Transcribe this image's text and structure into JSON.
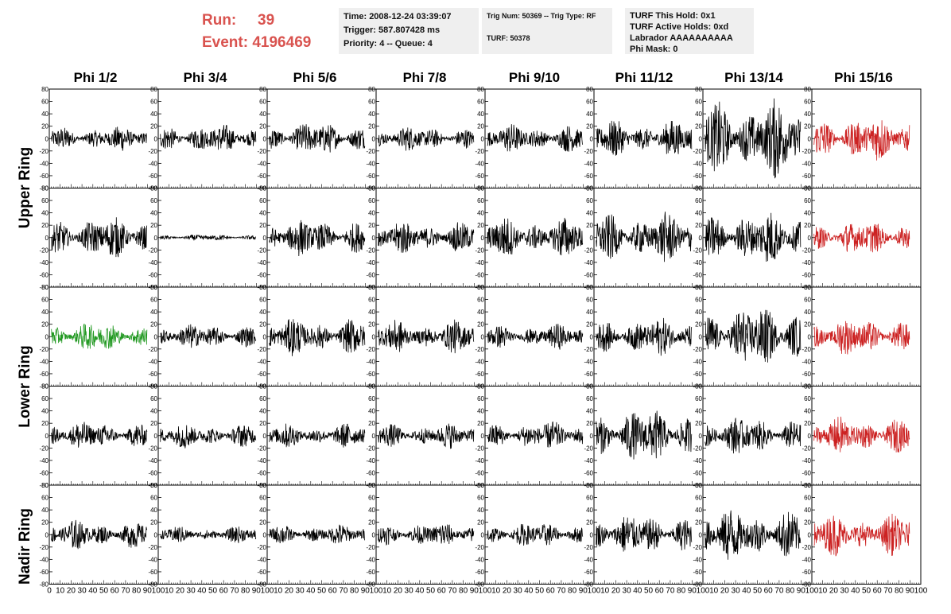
{
  "header": {
    "run_label": "Run:",
    "run_value": "39",
    "event_label": "Event:",
    "event_value": "4196469",
    "time": "Time: 2008-12-24 03:39:07",
    "trigger": "Trigger: 587.807428 ms",
    "priority": "Priority: 4 -- Queue: 4",
    "trig_num": "Trig Num: 50369 -- Trig Type: RF",
    "turf": "TURF: 50378",
    "turf_this_hold": "TURF This Hold: 0x1",
    "turf_active_holds": "TURF Active Holds: 0xd",
    "labrador": "Labrador AAAAAAAAAA",
    "phi_mask": "Phi Mask: 0"
  },
  "columns": [
    "Phi 1/2",
    "Phi 3/4",
    "Phi 5/6",
    "Phi 7/8",
    "Phi 9/10",
    "Phi 11/12",
    "Phi 13/14",
    "Phi 15/16"
  ],
  "ring_labels": [
    "Upper Ring",
    "Lower Ring",
    "Nadir Ring"
  ],
  "colors": {
    "normal": "#000000",
    "red": "#cc2222",
    "green": "#229922",
    "run_text": "#d9534f"
  },
  "chart_data": {
    "type": "line",
    "title": "",
    "xlabel": "",
    "ylabel": "",
    "xlim": [
      0,
      100
    ],
    "ylim": [
      -80,
      80
    ],
    "x_ticks": [
      0,
      10,
      20,
      30,
      40,
      50,
      60,
      70,
      80,
      90,
      100
    ],
    "y_ticks": [
      -80,
      -60,
      -40,
      -20,
      0,
      20,
      40,
      60,
      80
    ],
    "panel_rows": 5,
    "panel_cols": 8,
    "amplitudes": [
      [
        12,
        14,
        16,
        12,
        14,
        18,
        38,
        22
      ],
      [
        20,
        3,
        18,
        16,
        20,
        24,
        26,
        16
      ],
      [
        14,
        12,
        18,
        16,
        12,
        18,
        30,
        18
      ],
      [
        14,
        12,
        12,
        12,
        14,
        26,
        18,
        18
      ],
      [
        14,
        8,
        10,
        12,
        12,
        20,
        26,
        20
      ]
    ],
    "colors": [
      [
        "normal",
        "normal",
        "normal",
        "normal",
        "normal",
        "normal",
        "normal",
        "red"
      ],
      [
        "normal",
        "normal",
        "normal",
        "normal",
        "normal",
        "normal",
        "normal",
        "red"
      ],
      [
        "green",
        "normal",
        "normal",
        "normal",
        "normal",
        "normal",
        "normal",
        "red"
      ],
      [
        "normal",
        "normal",
        "normal",
        "normal",
        "normal",
        "normal",
        "normal",
        "red"
      ],
      [
        "normal",
        "normal",
        "normal",
        "normal",
        "normal",
        "normal",
        "normal",
        "red"
      ]
    ]
  }
}
